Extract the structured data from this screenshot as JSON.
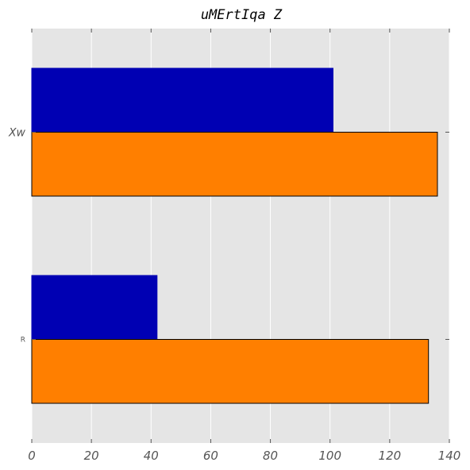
{
  "chart_data": {
    "type": "bar",
    "orientation": "horizontal",
    "title": "uMErtIqa Z",
    "xlabel": "",
    "ylabel": "",
    "categories": [
      "R",
      "Xw"
    ],
    "series": [
      {
        "values": [
          42,
          101
        ],
        "color": "#0000b3"
      },
      {
        "values": [
          133,
          136
        ],
        "color": "#ff7f00"
      }
    ],
    "xlim": [
      0,
      140
    ],
    "xticks": [
      0,
      20,
      40,
      60,
      80,
      100,
      120,
      140
    ],
    "xtick_labels": [
      "0",
      "20",
      "40",
      "60",
      "80",
      "100",
      "120",
      "140"
    ],
    "grid": true,
    "background": "#e5e5e5",
    "grid_color": "#ffffff",
    "bar_edge_color": "#000000",
    "legend": "none"
  }
}
